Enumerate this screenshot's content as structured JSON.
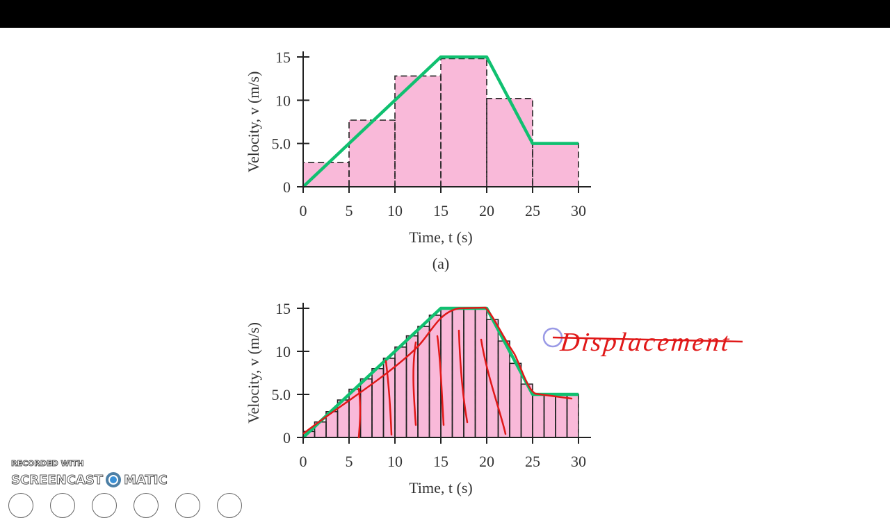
{
  "chart_data": [
    {
      "type": "bar",
      "panel_label": "(a)",
      "xlabel": "Time, t (s)",
      "ylabel": "Velocity, v (m/s)",
      "xlim": [
        0,
        30
      ],
      "ylim": [
        0,
        15
      ],
      "xticks": [
        "0",
        "5",
        "10",
        "15",
        "20",
        "25",
        "30"
      ],
      "yticks": [
        "0",
        "5.0",
        "10",
        "15"
      ],
      "bar_width": 5,
      "bar_starts": [
        0,
        5,
        10,
        15,
        20,
        25
      ],
      "values": [
        2.8,
        7.7,
        12.8,
        14.8,
        10.2,
        5.0
      ],
      "curve": {
        "x": [
          0,
          15,
          20,
          25,
          30
        ],
        "y": [
          0,
          15,
          15,
          5,
          5
        ]
      }
    },
    {
      "type": "bar",
      "xlabel": "Time, t (s)",
      "ylabel": "Velocity, v (m/s)",
      "xlim": [
        0,
        30
      ],
      "ylim": [
        0,
        15
      ],
      "xticks": [
        "0",
        "5",
        "10",
        "15",
        "20",
        "25",
        "30"
      ],
      "yticks": [
        "0",
        "5.0",
        "10",
        "15"
      ],
      "bar_width": 1.25,
      "values": [
        0.7,
        1.8,
        3.0,
        4.35,
        5.6,
        6.8,
        8.0,
        9.2,
        10.5,
        11.8,
        12.9,
        14.2,
        15,
        15,
        15,
        15,
        13.7,
        11.2,
        8.6,
        6.2,
        5,
        5,
        5,
        5
      ],
      "curve": {
        "x": [
          0,
          15,
          20,
          25,
          30
        ],
        "y": [
          0,
          15,
          15,
          5,
          5
        ]
      }
    }
  ],
  "colors": {
    "fill": "#f9b9d9",
    "curve": "#10c070",
    "ink": "#e01818",
    "axis": "#222222"
  },
  "annotation": {
    "text": "Displacement"
  },
  "watermark": {
    "line1": "RECORDED WITH",
    "left": "SCREENCAST",
    "right": "MATIC"
  }
}
